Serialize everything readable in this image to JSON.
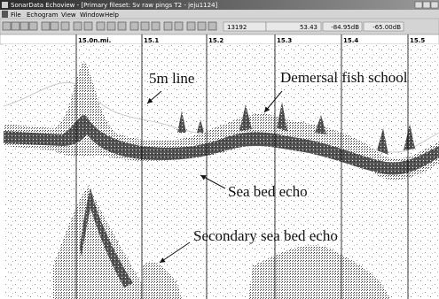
{
  "titlebar": {
    "title": "SonarData Echoview - [Primary fileset: Sv raw pings T2 - jeju1124]"
  },
  "menu": {
    "items": [
      "File",
      "Echogram",
      "View",
      "Window",
      "Help"
    ]
  },
  "status": {
    "fields": [
      "13192",
      "53.43",
      "-84.95dB",
      "-65.00dB"
    ]
  },
  "ruler": {
    "labels": [
      "15.0n.mi.",
      "15.1",
      "15.2",
      "15.3",
      "15.4",
      "15.5"
    ]
  },
  "annotations": [
    "5m line",
    "Demersal fish school",
    "Sea bed echo",
    "Secondary sea bed echo"
  ]
}
